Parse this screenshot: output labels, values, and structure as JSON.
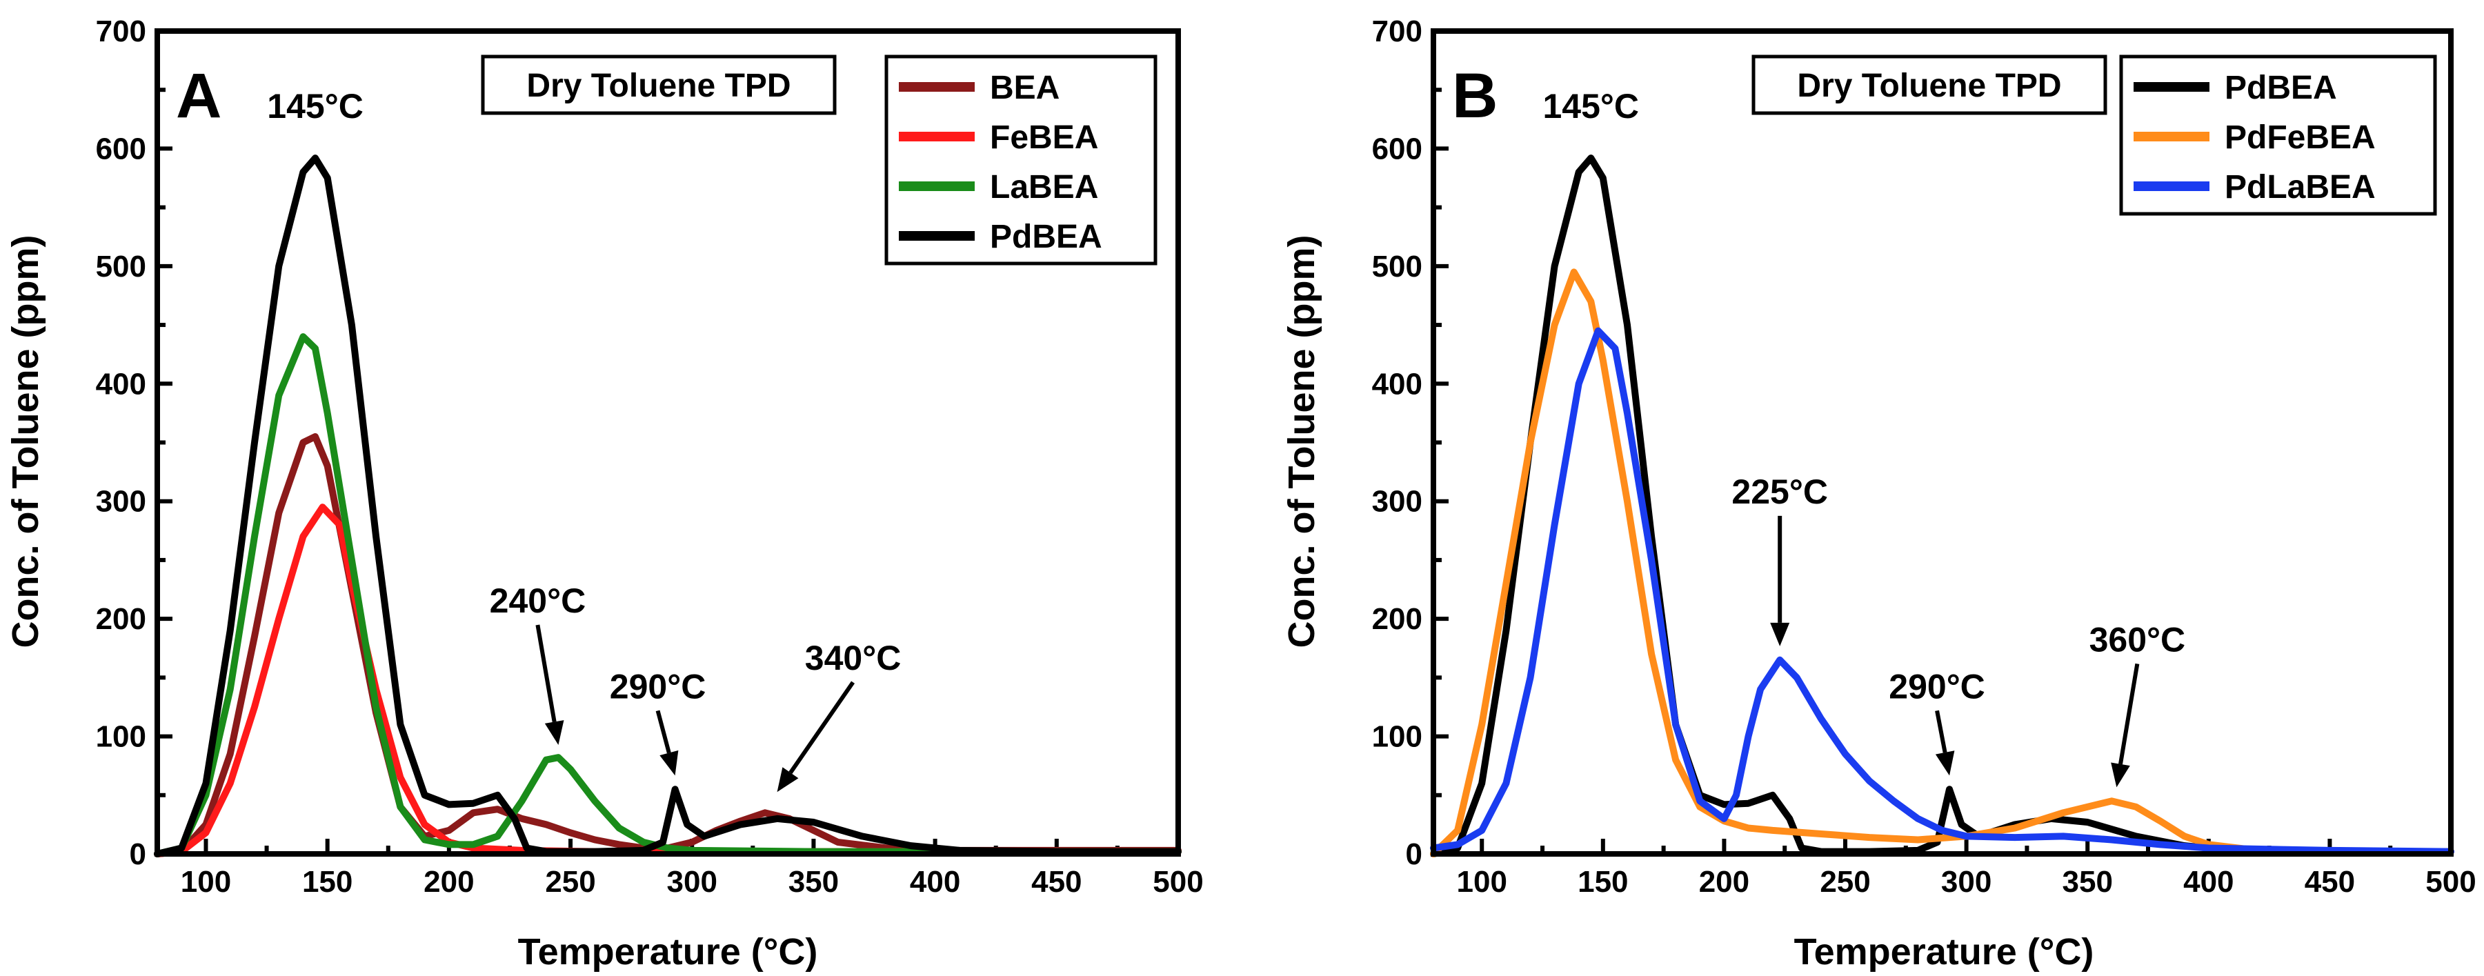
{
  "chart_data": [
    {
      "type": "line",
      "panel_label": "A",
      "title": "Dry Toluene TPD",
      "xlabel": "Temperature (°C)",
      "ylabel": "Conc. of Toluene (ppm)",
      "xlim": [
        80,
        500
      ],
      "ylim": [
        0,
        700
      ],
      "xticks": [
        100,
        150,
        200,
        250,
        300,
        350,
        400,
        450,
        500
      ],
      "yticks": [
        0,
        100,
        200,
        300,
        400,
        500,
        600,
        700
      ],
      "legend_position": "top-right",
      "series": [
        {
          "name": "BEA",
          "color": "#8b1a1a",
          "points": [
            [
              80,
              0
            ],
            [
              90,
              2
            ],
            [
              100,
              25
            ],
            [
              110,
              85
            ],
            [
              120,
              185
            ],
            [
              130,
              290
            ],
            [
              140,
              350
            ],
            [
              145,
              355
            ],
            [
              150,
              330
            ],
            [
              160,
              225
            ],
            [
              170,
              120
            ],
            [
              180,
              40
            ],
            [
              190,
              15
            ],
            [
              200,
              20
            ],
            [
              210,
              35
            ],
            [
              220,
              38
            ],
            [
              230,
              30
            ],
            [
              240,
              25
            ],
            [
              250,
              18
            ],
            [
              260,
              12
            ],
            [
              270,
              8
            ],
            [
              280,
              5
            ],
            [
              290,
              5
            ],
            [
              300,
              10
            ],
            [
              310,
              20
            ],
            [
              320,
              28
            ],
            [
              330,
              35
            ],
            [
              340,
              30
            ],
            [
              350,
              20
            ],
            [
              360,
              10
            ],
            [
              380,
              5
            ],
            [
              400,
              3
            ],
            [
              450,
              3
            ],
            [
              500,
              3
            ]
          ]
        },
        {
          "name": "FeBEA",
          "color": "#ff1a1a",
          "points": [
            [
              80,
              0
            ],
            [
              90,
              2
            ],
            [
              100,
              18
            ],
            [
              110,
              60
            ],
            [
              120,
              125
            ],
            [
              130,
              200
            ],
            [
              140,
              270
            ],
            [
              148,
              295
            ],
            [
              155,
              280
            ],
            [
              160,
              230
            ],
            [
              170,
              140
            ],
            [
              180,
              65
            ],
            [
              190,
              25
            ],
            [
              200,
              10
            ],
            [
              210,
              5
            ],
            [
              230,
              3
            ],
            [
              260,
              2
            ],
            [
              300,
              2
            ],
            [
              400,
              2
            ],
            [
              500,
              2
            ]
          ]
        },
        {
          "name": "LaBEA",
          "color": "#1a8c1a",
          "points": [
            [
              80,
              0
            ],
            [
              90,
              5
            ],
            [
              100,
              50
            ],
            [
              110,
              140
            ],
            [
              120,
              270
            ],
            [
              130,
              390
            ],
            [
              140,
              440
            ],
            [
              145,
              430
            ],
            [
              150,
              375
            ],
            [
              160,
              250
            ],
            [
              170,
              125
            ],
            [
              180,
              40
            ],
            [
              190,
              12
            ],
            [
              200,
              8
            ],
            [
              210,
              8
            ],
            [
              220,
              15
            ],
            [
              230,
              45
            ],
            [
              240,
              80
            ],
            [
              245,
              82
            ],
            [
              250,
              72
            ],
            [
              260,
              45
            ],
            [
              270,
              22
            ],
            [
              280,
              10
            ],
            [
              290,
              5
            ],
            [
              300,
              3
            ],
            [
              350,
              2
            ],
            [
              400,
              2
            ],
            [
              500,
              2
            ]
          ]
        },
        {
          "name": "PdBEA",
          "color": "#000000",
          "points": [
            [
              80,
              0
            ],
            [
              90,
              5
            ],
            [
              100,
              60
            ],
            [
              110,
              190
            ],
            [
              120,
              350
            ],
            [
              130,
              500
            ],
            [
              140,
              580
            ],
            [
              145,
              592
            ],
            [
              150,
              575
            ],
            [
              160,
              450
            ],
            [
              170,
              270
            ],
            [
              180,
              110
            ],
            [
              190,
              50
            ],
            [
              200,
              42
            ],
            [
              210,
              43
            ],
            [
              220,
              50
            ],
            [
              227,
              30
            ],
            [
              232,
              5
            ],
            [
              240,
              2
            ],
            [
              260,
              2
            ],
            [
              280,
              3
            ],
            [
              288,
              10
            ],
            [
              293,
              55
            ],
            [
              298,
              25
            ],
            [
              305,
              15
            ],
            [
              320,
              25
            ],
            [
              335,
              30
            ],
            [
              350,
              27
            ],
            [
              370,
              15
            ],
            [
              390,
              7
            ],
            [
              410,
              3
            ],
            [
              450,
              2
            ],
            [
              500,
              2
            ]
          ]
        }
      ],
      "annotations": [
        {
          "text": "145°C",
          "x": 145,
          "y": 592,
          "arrow": false
        },
        {
          "text": "240°C",
          "x": 245,
          "y": 88,
          "arrow": true
        },
        {
          "text": "290°C",
          "x": 293,
          "y": 62,
          "arrow": true
        },
        {
          "text": "340°C",
          "x": 335,
          "y": 48,
          "arrow": true
        }
      ]
    },
    {
      "type": "line",
      "panel_label": "B",
      "title": "Dry Toluene TPD",
      "xlabel": "Temperature (°C)",
      "ylabel": "Conc. of Toluene (ppm)",
      "xlim": [
        80,
        500
      ],
      "ylim": [
        0,
        700
      ],
      "xticks": [
        100,
        150,
        200,
        250,
        300,
        350,
        400,
        450,
        500
      ],
      "yticks": [
        0,
        100,
        200,
        300,
        400,
        500,
        600,
        700
      ],
      "legend_position": "top-right",
      "series": [
        {
          "name": "PdBEA",
          "color": "#000000",
          "points": [
            [
              80,
              0
            ],
            [
              90,
              5
            ],
            [
              100,
              60
            ],
            [
              110,
              190
            ],
            [
              120,
              350
            ],
            [
              130,
              500
            ],
            [
              140,
              580
            ],
            [
              145,
              592
            ],
            [
              150,
              575
            ],
            [
              160,
              450
            ],
            [
              170,
              270
            ],
            [
              180,
              110
            ],
            [
              190,
              50
            ],
            [
              200,
              42
            ],
            [
              210,
              43
            ],
            [
              220,
              50
            ],
            [
              227,
              30
            ],
            [
              232,
              5
            ],
            [
              240,
              2
            ],
            [
              260,
              2
            ],
            [
              280,
              3
            ],
            [
              288,
              10
            ],
            [
              293,
              55
            ],
            [
              298,
              25
            ],
            [
              305,
              15
            ],
            [
              320,
              25
            ],
            [
              335,
              30
            ],
            [
              350,
              27
            ],
            [
              370,
              15
            ],
            [
              390,
              7
            ],
            [
              410,
              3
            ],
            [
              450,
              2
            ],
            [
              500,
              2
            ]
          ]
        },
        {
          "name": "PdFeBEA",
          "color": "#ff8c1a",
          "points": [
            [
              80,
              0
            ],
            [
              90,
              20
            ],
            [
              100,
              110
            ],
            [
              110,
              230
            ],
            [
              120,
              350
            ],
            [
              130,
              450
            ],
            [
              138,
              495
            ],
            [
              145,
              470
            ],
            [
              150,
              420
            ],
            [
              160,
              300
            ],
            [
              170,
              170
            ],
            [
              180,
              80
            ],
            [
              190,
              40
            ],
            [
              200,
              28
            ],
            [
              210,
              22
            ],
            [
              220,
              20
            ],
            [
              240,
              17
            ],
            [
              260,
              14
            ],
            [
              280,
              12
            ],
            [
              300,
              15
            ],
            [
              320,
              22
            ],
            [
              340,
              35
            ],
            [
              360,
              45
            ],
            [
              370,
              40
            ],
            [
              380,
              28
            ],
            [
              390,
              15
            ],
            [
              400,
              8
            ],
            [
              420,
              3
            ],
            [
              450,
              2
            ],
            [
              500,
              2
            ]
          ]
        },
        {
          "name": "PdLaBEA",
          "color": "#1a3cf0",
          "points": [
            [
              80,
              5
            ],
            [
              90,
              8
            ],
            [
              100,
              20
            ],
            [
              110,
              60
            ],
            [
              120,
              150
            ],
            [
              130,
              280
            ],
            [
              140,
              400
            ],
            [
              148,
              445
            ],
            [
              155,
              430
            ],
            [
              160,
              375
            ],
            [
              170,
              250
            ],
            [
              180,
              110
            ],
            [
              190,
              45
            ],
            [
              200,
              30
            ],
            [
              205,
              50
            ],
            [
              210,
              100
            ],
            [
              215,
              140
            ],
            [
              223,
              165
            ],
            [
              230,
              150
            ],
            [
              240,
              115
            ],
            [
              250,
              85
            ],
            [
              260,
              62
            ],
            [
              270,
              45
            ],
            [
              280,
              30
            ],
            [
              290,
              20
            ],
            [
              300,
              15
            ],
            [
              320,
              14
            ],
            [
              340,
              15
            ],
            [
              360,
              12
            ],
            [
              380,
              8
            ],
            [
              400,
              5
            ],
            [
              450,
              3
            ],
            [
              500,
              2
            ]
          ]
        }
      ],
      "annotations": [
        {
          "text": "145°C",
          "x": 145,
          "y": 592,
          "arrow": false
        },
        {
          "text": "225°C",
          "x": 223,
          "y": 172,
          "arrow": true
        },
        {
          "text": "290°C",
          "x": 293,
          "y": 62,
          "arrow": true
        },
        {
          "text": "360°C",
          "x": 362,
          "y": 52,
          "arrow": true
        }
      ]
    }
  ]
}
